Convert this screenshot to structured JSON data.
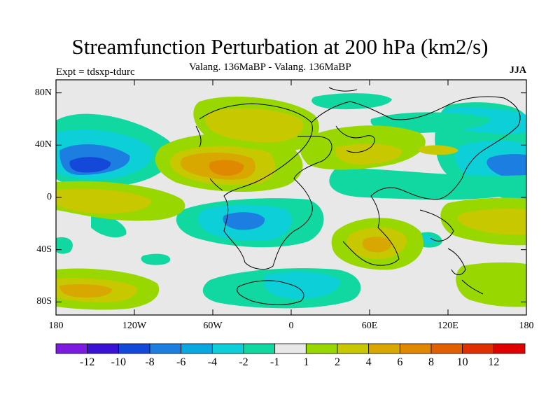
{
  "title": "Streamfunction Perturbation at 200 hPa (km2/s)",
  "left_subtitle": "Expt = tdsxp-tdurc",
  "center_subtitle": "Valang. 136MaBP - Valang.  136MaBP",
  "right_subtitle": "JJA",
  "chart_data": {
    "type": "filled-contour map",
    "variable": "Streamfunction perturbation at 200 hPa",
    "units": "km2/s",
    "season": "JJA",
    "x_axis": {
      "range": [
        -180,
        180
      ],
      "ticks": [
        -180,
        -120,
        -60,
        0,
        60,
        120,
        180
      ],
      "tick_labels": [
        "180",
        "120W",
        "60W",
        "0",
        "60E",
        "120E",
        "180"
      ]
    },
    "y_axis": {
      "range": [
        -90,
        90
      ],
      "ticks": [
        80,
        40,
        0,
        -40,
        -80
      ],
      "tick_labels": [
        "80N",
        "40N",
        "0",
        "40S",
        "80S"
      ]
    },
    "colorbar": {
      "levels": [
        -12,
        -10,
        -8,
        -6,
        -4,
        -2,
        -1,
        1,
        2,
        4,
        6,
        8,
        10,
        12
      ],
      "labels": [
        "-12",
        "-10",
        "-8",
        "-6",
        "-4",
        "-2",
        "-1",
        "1",
        "2",
        "4",
        "6",
        "8",
        "10",
        "12"
      ],
      "colors": [
        "#7b1be0",
        "#3a12d6",
        "#1448d8",
        "#1c7ee0",
        "#08a8e0",
        "#0ccfd8",
        "#10d8a0",
        "#e8e8e8",
        "#98d800",
        "#c8c800",
        "#d8a800",
        "#e08800",
        "#e06000",
        "#e03000",
        "#e00000"
      ]
    },
    "features": [
      {
        "lon": -150,
        "lat": 25,
        "value": -8,
        "sign": "negative"
      },
      {
        "lon": 160,
        "lat": 25,
        "value": -6,
        "sign": "negative"
      },
      {
        "lon": -35,
        "lat": -20,
        "value": -6,
        "sign": "negative"
      },
      {
        "lon": -5,
        "lat": -65,
        "value": -4,
        "sign": "negative"
      },
      {
        "lon": -65,
        "lat": 25,
        "value": 6,
        "sign": "positive"
      },
      {
        "lon": -30,
        "lat": 45,
        "value": 2,
        "sign": "positive"
      },
      {
        "lon": 60,
        "lat": -35,
        "value": 4,
        "sign": "positive"
      },
      {
        "lon": -150,
        "lat": -70,
        "value": 4,
        "sign": "positive"
      },
      {
        "lon": 150,
        "lat": -20,
        "value": 2,
        "sign": "positive"
      }
    ]
  }
}
